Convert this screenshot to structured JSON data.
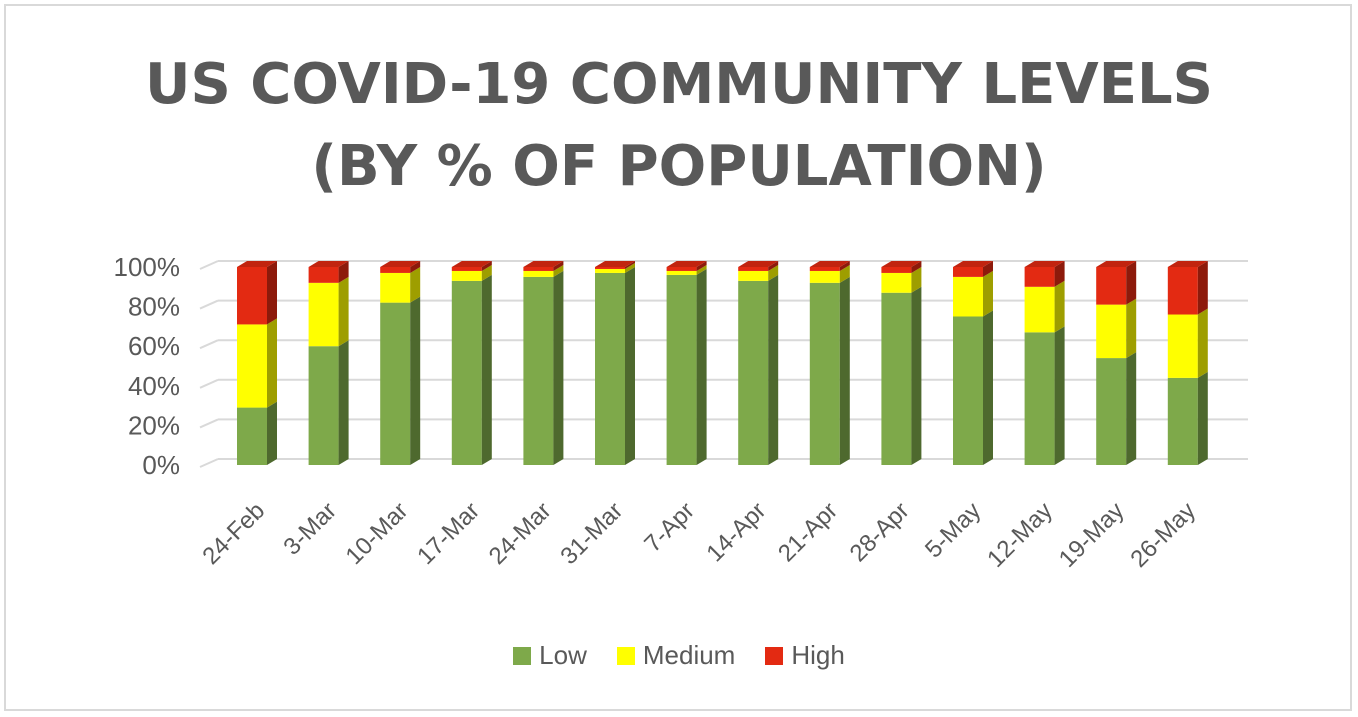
{
  "chart_data": {
    "type": "bar",
    "stacked": true,
    "style": "3d-stacked-column-100",
    "title_lines": [
      "US COVID-19 COMMUNITY LEVELS",
      "(BY % OF POPULATION)"
    ],
    "categories": [
      "24-Feb",
      "3-Mar",
      "10-Mar",
      "17-Mar",
      "24-Mar",
      "31-Mar",
      "7-Apr",
      "14-Apr",
      "21-Apr",
      "28-Apr",
      "5-May",
      "12-May",
      "19-May",
      "26-May"
    ],
    "series": [
      {
        "name": "Low",
        "color": "#7ea94a",
        "values": [
          29,
          60,
          82,
          93,
          95,
          97,
          96,
          93,
          92,
          87,
          75,
          67,
          54,
          44
        ]
      },
      {
        "name": "Medium",
        "color": "#ffff00",
        "values": [
          42,
          32,
          15,
          5,
          3,
          2,
          2,
          5,
          6,
          10,
          20,
          23,
          27,
          32
        ]
      },
      {
        "name": "High",
        "color": "#e32a12",
        "values": [
          29,
          8,
          3,
          2,
          2,
          1,
          2,
          2,
          2,
          3,
          5,
          10,
          19,
          24
        ]
      }
    ],
    "y_ticks": [
      "0%",
      "20%",
      "40%",
      "60%",
      "80%",
      "100%"
    ],
    "ylim": [
      0,
      100
    ],
    "xlabel": "",
    "ylabel": "",
    "grid": true,
    "legend_position": "bottom"
  }
}
